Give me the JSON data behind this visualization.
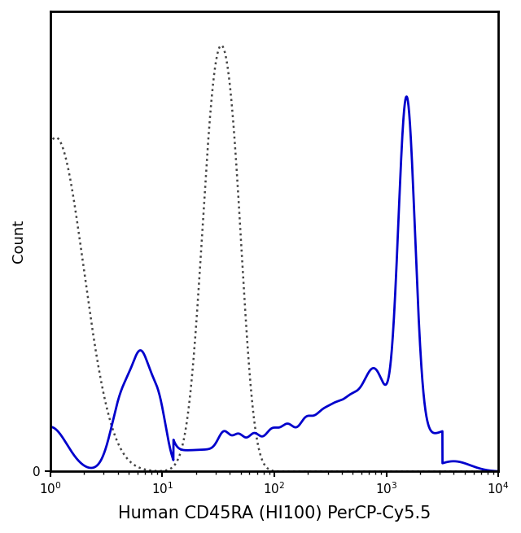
{
  "xlabel": "Human CD45RA (HI100) PerCP-Cy5.5",
  "ylabel": "Count",
  "blue_color": "#0000cc",
  "gray_color": "#444444",
  "blue_linewidth": 2.0,
  "gray_linewidth": 1.8,
  "xlabel_fontsize": 15,
  "ylabel_fontsize": 13,
  "tick_labelsize": 11
}
